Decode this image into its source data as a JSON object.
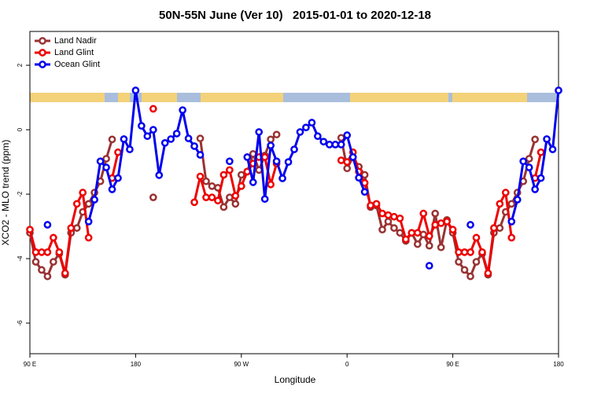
{
  "chart_data": {
    "type": "line",
    "title": "50N-55N June (Ver 10)   2015-01-01 to 2020-12-18",
    "x_label": "Longitude",
    "y_label": "XCO2 - MLO trend (ppm)",
    "x": [
      90,
      95,
      100,
      105,
      110,
      115,
      120,
      125,
      130,
      135,
      140,
      145,
      150,
      155,
      160,
      165,
      170,
      175,
      180,
      185,
      190,
      195,
      200,
      205,
      210,
      215,
      220,
      225,
      230,
      235,
      240,
      245,
      250,
      255,
      260,
      265,
      270,
      275,
      280,
      285,
      290,
      295,
      300,
      305,
      310,
      315,
      320,
      325,
      330,
      335,
      340,
      345,
      350,
      355,
      360,
      365,
      370,
      375,
      380,
      385,
      390,
      395,
      400,
      405,
      410,
      415,
      420,
      425,
      430,
      435,
      440,
      445,
      450,
      455,
      460,
      465,
      470,
      475,
      480,
      485,
      490,
      495,
      500,
      505,
      510,
      515,
      520,
      525,
      530,
      535,
      540
    ],
    "series": [
      {
        "name": "Land Nadir",
        "color": "#993333",
        "values": [
          -3.2,
          -4.1,
          -4.35,
          -4.55,
          -4.1,
          -3.85,
          -4.5,
          -3.2,
          -3.05,
          -2.55,
          -2.3,
          -1.95,
          -1.6,
          -0.9,
          -0.3,
          null,
          null,
          null,
          null,
          null,
          null,
          -2.1,
          null,
          null,
          null,
          null,
          null,
          null,
          null,
          -0.27,
          -1.6,
          -1.75,
          -1.8,
          -2.4,
          -2.1,
          -2.3,
          -1.4,
          -1.3,
          -0.75,
          -1.25,
          -0.8,
          -0.3,
          -0.15,
          null,
          null,
          null,
          null,
          null,
          null,
          null,
          null,
          null,
          null,
          -0.25,
          -1.2,
          -0.85,
          -1.15,
          -1.4,
          -2.4,
          -2.35,
          -3.1,
          -2.85,
          -3.05,
          -3.2,
          -3.45,
          -3.2,
          -3.55,
          -3.25,
          -3.6,
          -2.6,
          -3.65,
          -2.8,
          -3.2,
          -4.1,
          -4.35,
          -4.55,
          -4.1,
          -3.85,
          -4.5,
          -3.2,
          -3.05,
          -2.55,
          -2.3,
          -1.95,
          -1.6,
          -0.9,
          -0.3,
          null,
          null,
          null,
          null
        ]
      },
      {
        "name": "Land Glint",
        "color": "#ee0000",
        "values": [
          -3.1,
          -3.8,
          -3.8,
          -3.8,
          -3.35,
          -3.8,
          -4.45,
          -3.05,
          -2.3,
          -1.95,
          -3.35,
          null,
          null,
          null,
          -1.5,
          -0.7,
          null,
          null,
          null,
          null,
          null,
          0.65,
          null,
          null,
          null,
          null,
          null,
          null,
          -2.25,
          -1.45,
          -2.1,
          -2.1,
          -2.2,
          -1.4,
          -1.25,
          -2.05,
          -1.75,
          -1.3,
          -1.05,
          -0.85,
          -0.85,
          -1.7,
          -1.05,
          null,
          null,
          null,
          null,
          null,
          null,
          null,
          null,
          null,
          null,
          -0.95,
          -1.0,
          -0.7,
          -1.3,
          -1.65,
          -2.35,
          -2.3,
          -2.6,
          -2.65,
          -2.7,
          -2.75,
          -3.4,
          -3.2,
          -3.2,
          -2.6,
          -3.3,
          -2.95,
          -2.9,
          -2.85,
          -3.1,
          -3.8,
          -3.8,
          -3.8,
          -3.35,
          -3.8,
          -4.45,
          -3.05,
          -2.3,
          -1.95,
          -3.35,
          null,
          null,
          null,
          -1.5,
          -0.7,
          null,
          null,
          null
        ]
      },
      {
        "name": "Ocean Glint",
        "color": "#0000ee",
        "values": [
          null,
          null,
          null,
          -2.95,
          null,
          null,
          null,
          null,
          null,
          null,
          -2.85,
          -2.17,
          -0.98,
          -1.17,
          -1.85,
          -1.5,
          -0.29,
          -0.61,
          1.22,
          0.12,
          -0.2,
          0,
          -1.41,
          -0.41,
          -0.29,
          -0.12,
          0.61,
          -0.27,
          -0.51,
          -0.78,
          null,
          null,
          null,
          null,
          -0.98,
          null,
          null,
          -0.85,
          -1.63,
          -0.07,
          -2.15,
          -0.49,
          -0.98,
          -1.51,
          -1.0,
          -0.61,
          -0.07,
          0.07,
          0.22,
          -0.2,
          -0.37,
          -0.46,
          -0.46,
          -0.46,
          -0.17,
          -0.85,
          -1.49,
          -1.93,
          null,
          null,
          null,
          null,
          null,
          null,
          null,
          null,
          null,
          null,
          -4.22,
          null,
          null,
          null,
          null,
          null,
          null,
          -2.95,
          null,
          null,
          null,
          null,
          null,
          null,
          -2.85,
          -2.17,
          -0.98,
          -1.17,
          -1.85,
          -1.5,
          -0.29,
          -0.61,
          1.22
        ]
      }
    ],
    "xlim": [
      90,
      540
    ],
    "xticks": [
      {
        "value": 90,
        "label": "90 E"
      },
      180,
      {
        "value": 270,
        "label": "90 W"
      },
      {
        "value": 360,
        "label": "0"
      },
      {
        "value": 450,
        "label": "90 E"
      },
      {
        "value": 540,
        "label": "180"
      }
    ],
    "ylim": [
      -6.95,
      3.05
    ],
    "yticks": [
      -6,
      -4,
      -2,
      0,
      2
    ],
    "legend": "top-left",
    "grid": false
  }
}
